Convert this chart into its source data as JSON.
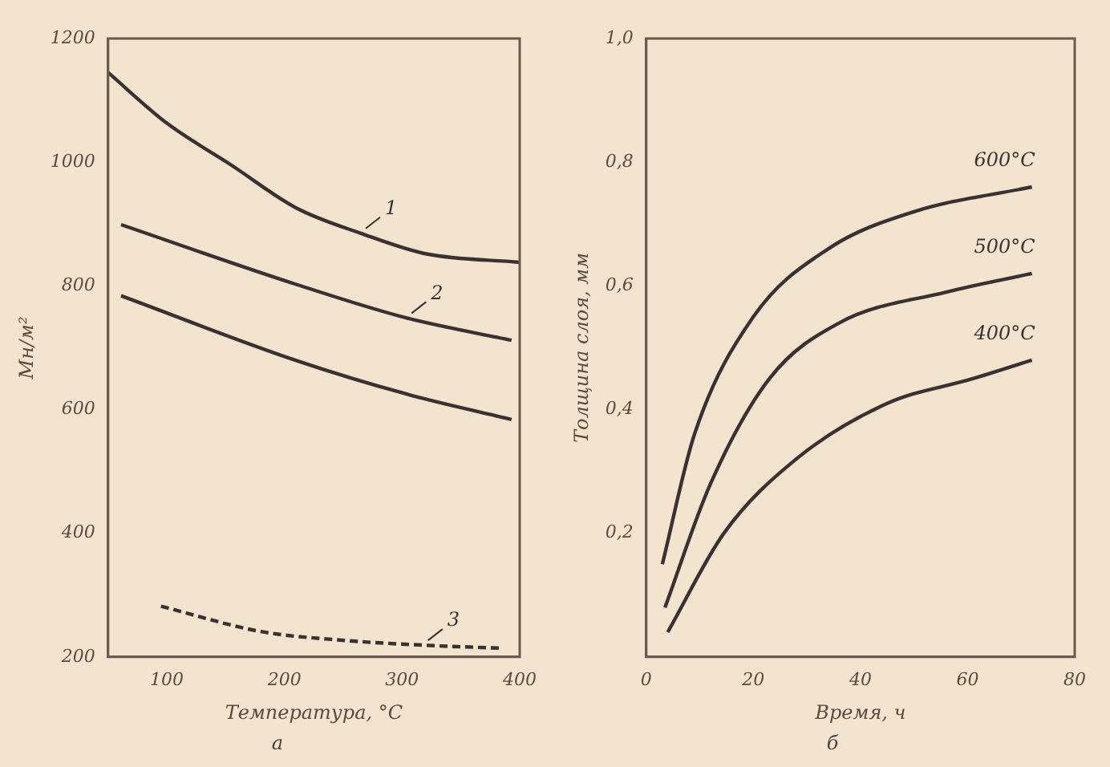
{
  "chart_data": [
    {
      "type": "line",
      "ylabel": "Мн/м²",
      "xlabel": "Температура, °С",
      "xlim": [
        50,
        400
      ],
      "xticks": [
        100,
        200,
        300,
        400
      ],
      "ylim": [
        200,
        1200
      ],
      "yticks": [
        200,
        400,
        600,
        800,
        1000,
        1200
      ],
      "grid": false,
      "legend": false,
      "series": [
        {
          "name": "1",
          "color": "#3a3232",
          "x": [
            50,
            100,
            155,
            210,
            265,
            320,
            400
          ],
          "values": [
            1145,
            1063,
            995,
            926,
            885,
            852,
            838
          ]
        },
        {
          "name": "2",
          "color": "#3a3232",
          "x": [
            61,
            209,
            304,
            393
          ],
          "values": [
            899,
            803,
            748,
            712
          ]
        },
        {
          "color": "#3a3232",
          "x": [
            61,
            209,
            304,
            393
          ],
          "values": [
            784,
            680,
            625,
            584
          ]
        },
        {
          "name": "3",
          "color": "#3a3232",
          "line_style": "dashed",
          "x": [
            95,
            180,
            249,
            318,
            386
          ],
          "values": [
            282,
            241,
            227,
            219,
            214
          ]
        }
      ],
      "annotations": [
        "а"
      ]
    },
    {
      "type": "line",
      "ylabel": "Толщина слоя, мм",
      "xlabel": "Время, ч",
      "xlim": [
        0,
        80
      ],
      "xticks": [
        0,
        20,
        40,
        60,
        80
      ],
      "ylim": [
        0,
        1
      ],
      "yticks": [
        {
          "value": 0,
          "label": null
        },
        {
          "value": 0.2,
          "label": "0,2"
        },
        {
          "value": 0.4,
          "label": "0,4"
        },
        {
          "value": 0.6,
          "label": "0,6"
        },
        {
          "value": 0.8,
          "label": "0,8"
        },
        {
          "value": 1,
          "label": "1,0"
        }
      ],
      "grid": false,
      "legend": false,
      "series": [
        {
          "name": "600°С",
          "color": "#3a3232",
          "x": [
            3,
            9,
            20,
            34,
            50,
            72
          ],
          "values": [
            0.15,
            0.36,
            0.55,
            0.66,
            0.72,
            0.76
          ]
        },
        {
          "name": "500°С",
          "color": "#3a3232",
          "x": [
            3.5,
            12,
            23,
            36,
            56,
            72
          ],
          "values": [
            0.08,
            0.28,
            0.45,
            0.54,
            0.59,
            0.62
          ]
        },
        {
          "name": "400°С",
          "color": "#3a3232",
          "x": [
            4,
            14.5,
            28,
            45,
            61,
            72
          ],
          "values": [
            0.04,
            0.2,
            0.32,
            0.41,
            0.45,
            0.48
          ]
        }
      ],
      "annotations": [
        "б"
      ]
    }
  ]
}
